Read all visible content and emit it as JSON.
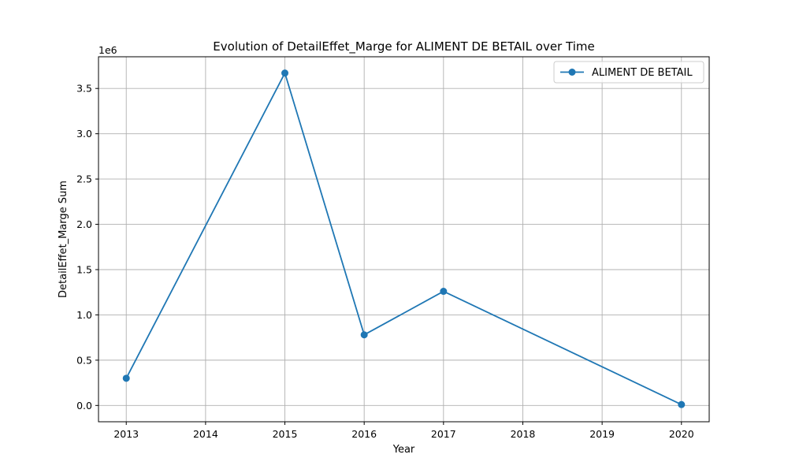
{
  "chart_data": {
    "type": "line",
    "title": "Evolution of DetailEffet_Marge for ALIMENT DE BETAIL over Time",
    "xlabel": "Year",
    "ylabel": "DetailEffet_Marge Sum",
    "y_offset_label": "1e6",
    "x_ticks": [
      "2013",
      "2014",
      "2015",
      "2016",
      "2017",
      "2018",
      "2019",
      "2020"
    ],
    "y_ticks": [
      "0.0",
      "0.5",
      "1.0",
      "1.5",
      "2.0",
      "2.5",
      "3.0",
      "3.5"
    ],
    "xlim": [
      2012.65,
      2020.35
    ],
    "ylim": [
      -180000,
      3850000
    ],
    "grid": true,
    "legend_position": "upper right",
    "series": [
      {
        "name": "ALIMENT DE BETAIL",
        "color": "#1f77b4",
        "marker": "circle",
        "x": [
          2013,
          2015,
          2016,
          2017,
          2020
        ],
        "y": [
          300000,
          3670000,
          780000,
          1260000,
          10000
        ]
      }
    ]
  }
}
